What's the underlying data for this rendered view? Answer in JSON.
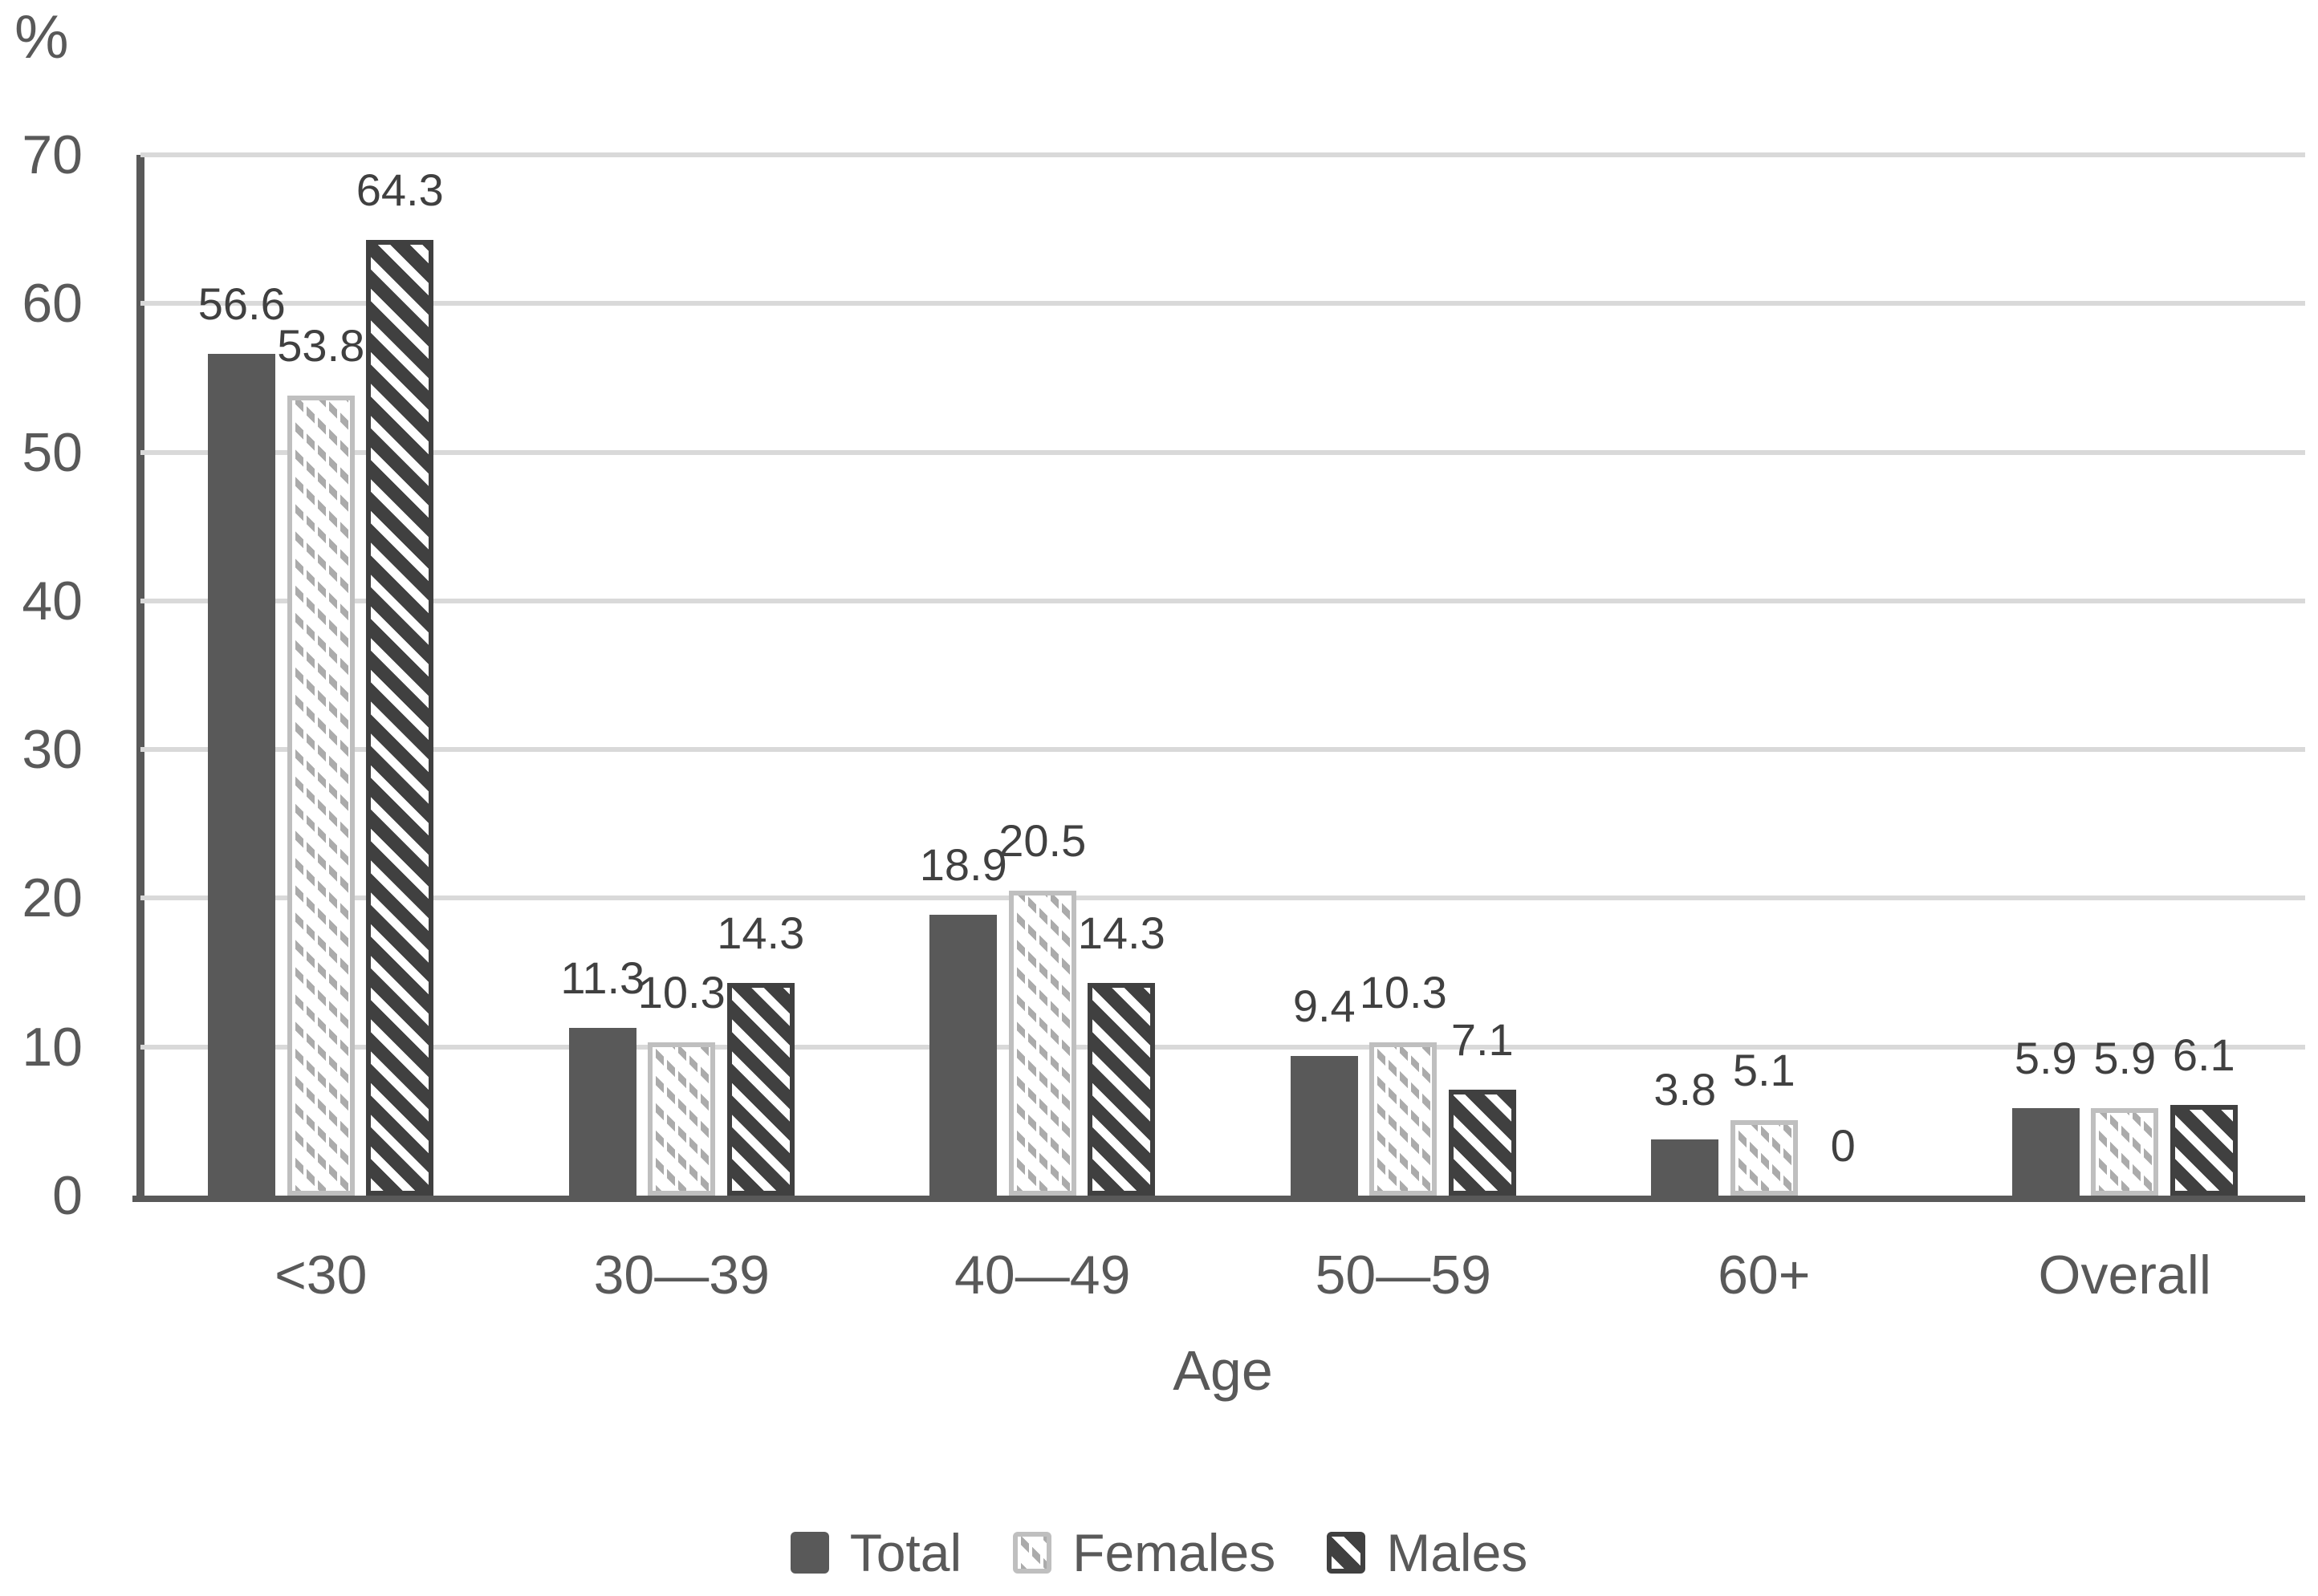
{
  "chart_data": {
    "type": "bar",
    "title": "",
    "ylabel": "%",
    "xlabel": "Age",
    "categories": [
      "<30",
      "30—39",
      "40—49",
      "50—59",
      "60+",
      "Overall"
    ],
    "series": [
      {
        "name": "Total",
        "values": [
          56.6,
          11.3,
          18.9,
          9.4,
          3.8,
          5.9
        ]
      },
      {
        "name": "Females",
        "values": [
          53.8,
          10.3,
          20.5,
          10.3,
          5.1,
          5.9
        ]
      },
      {
        "name": "Males",
        "values": [
          64.3,
          14.3,
          14.3,
          7.1,
          0,
          6.1
        ]
      }
    ],
    "ylim": [
      0,
      70
    ],
    "yticks": [
      0,
      10,
      20,
      30,
      40,
      50,
      60,
      70
    ],
    "grid": true,
    "data_labels": true,
    "legend_position": "bottom"
  },
  "colors": {
    "total_fill": "#595959",
    "males_fill": "#404040",
    "males_stripe": "#ffffff",
    "females_stripe": "#ababab",
    "females_border": "#bfbfbf",
    "gridline": "#d9d9d9",
    "axis_line": "#595959",
    "axis_text": "#595959",
    "data_label_text": "#404040"
  }
}
